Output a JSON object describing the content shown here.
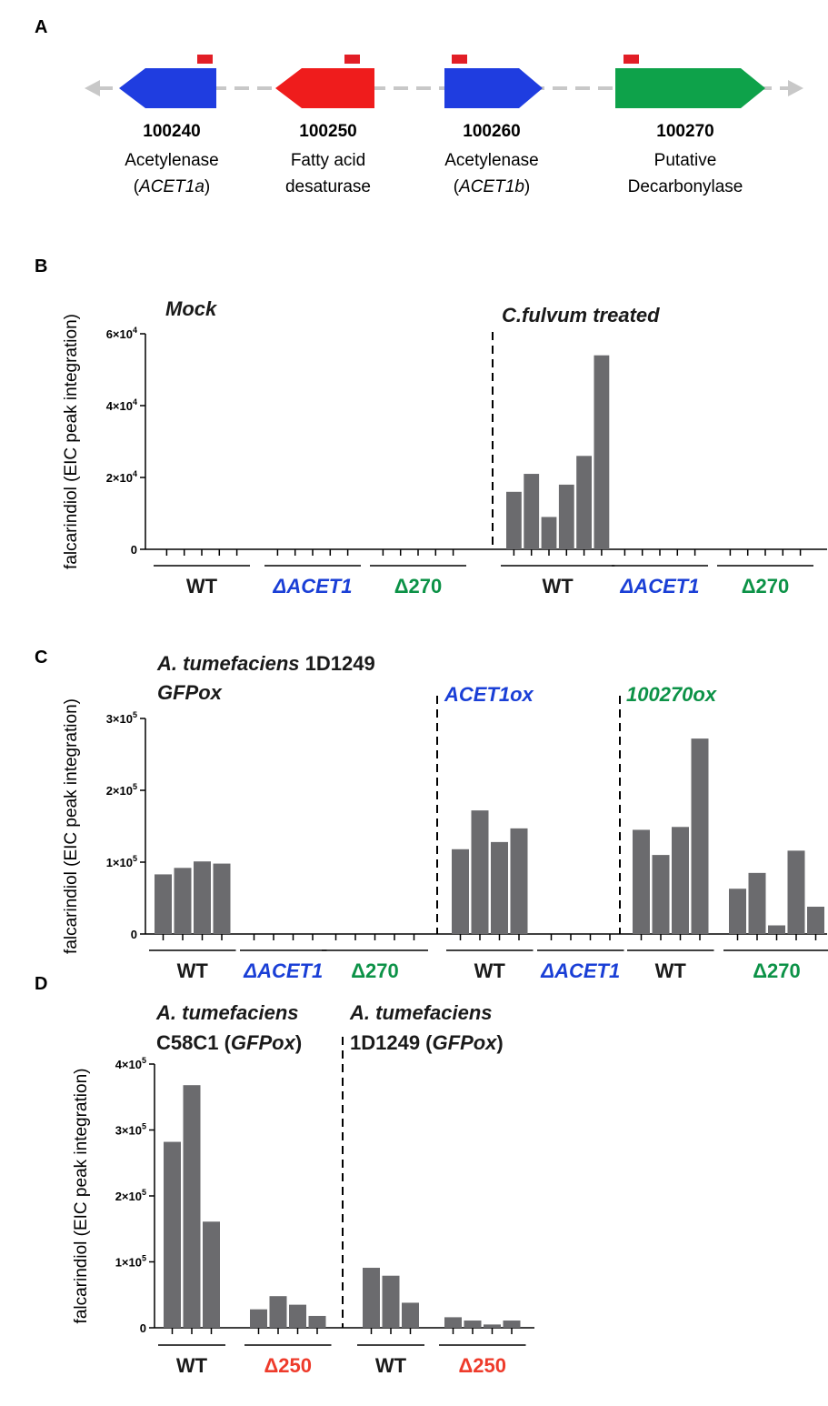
{
  "panel_labels": [
    "A",
    "B",
    "C",
    "D"
  ],
  "colors": {
    "bar": "#6b6b6e",
    "acetylenase": "#1f3de0",
    "desaturase": "#ef1c1c",
    "decarbonylase": "#0ea24a",
    "probe": "#e21e26",
    "backbone": "#c8c8c8",
    "axis": "#000000",
    "label_dark": "#1a1a1a",
    "label_blue": "#1a3fd6",
    "label_green": "#0c9247",
    "label_red": "#ee3b2b"
  },
  "genes": [
    {
      "id": "100240",
      "line1": "Acetylenase",
      "line2_pre": "(",
      "line2_italic": "ACET1a",
      "line2_post": ")",
      "direction": "left",
      "color_key": "acetylenase"
    },
    {
      "id": "100250",
      "line1": "Fatty acid",
      "line2_pre": "desaturase",
      "line2_italic": "",
      "line2_post": "",
      "direction": "left",
      "color_key": "desaturase"
    },
    {
      "id": "100260",
      "line1": "Acetylenase",
      "line2_pre": "(",
      "line2_italic": "ACET1b",
      "line2_post": ")",
      "direction": "right",
      "color_key": "acetylenase"
    },
    {
      "id": "100270",
      "line1": "Putative",
      "line2_pre": "Decarbonylase",
      "line2_italic": "",
      "line2_post": "",
      "direction": "right",
      "color_key": "decarbonylase"
    }
  ],
  "chart_data": [
    {
      "panel": "B",
      "type": "bar",
      "ylabel": "falcarindiol (EIC peak integration)",
      "ylim": [
        0,
        60000
      ],
      "y_ticks": [
        {
          "value": 0,
          "mant": "0",
          "exp": ""
        },
        {
          "value": 20000,
          "mant": "2×10",
          "exp": "4"
        },
        {
          "value": 40000,
          "mant": "4×10",
          "exp": "4"
        },
        {
          "value": 60000,
          "mant": "6×10",
          "exp": "4"
        }
      ],
      "headers": [
        {
          "lines": [
            {
              "parts": [
                {
                  "text": "Mock",
                  "italic": true
                }
              ]
            }
          ],
          "color_key": "label_dark"
        },
        {
          "lines": [
            {
              "parts": [
                {
                  "text": "C.fulvum treated",
                  "italic": true
                }
              ]
            }
          ],
          "color_key": "label_dark"
        }
      ],
      "groups": [
        {
          "label": "WT",
          "italic": false,
          "color_key": "label_dark",
          "values": [
            0,
            0,
            0,
            0,
            0
          ]
        },
        {
          "label": "ΔACET1",
          "italic": true,
          "color_key": "label_blue",
          "values": [
            0,
            0,
            0,
            0,
            0
          ]
        },
        {
          "label": "Δ270",
          "italic": false,
          "color_key": "label_green",
          "values": [
            0,
            0,
            0,
            0,
            0
          ]
        },
        {
          "label": "WT",
          "italic": false,
          "color_key": "label_dark",
          "values": [
            16000,
            21000,
            9000,
            18000,
            26000,
            54000
          ]
        },
        {
          "label": "ΔACET1",
          "italic": true,
          "color_key": "label_blue",
          "values": [
            0,
            0,
            0,
            0,
            0
          ]
        },
        {
          "label": "Δ270",
          "italic": false,
          "color_key": "label_green",
          "values": [
            0,
            0,
            0,
            0,
            0
          ]
        }
      ]
    },
    {
      "panel": "C",
      "type": "bar",
      "ylabel": "falcarindiol (EIC peak integration)",
      "ylim": [
        0,
        300000
      ],
      "y_ticks": [
        {
          "value": 0,
          "mant": "0",
          "exp": ""
        },
        {
          "value": 100000,
          "mant": "1×10",
          "exp": "5"
        },
        {
          "value": 200000,
          "mant": "2×10",
          "exp": "5"
        },
        {
          "value": 300000,
          "mant": "3×10",
          "exp": "5"
        }
      ],
      "headers": [
        {
          "lines": [
            {
              "parts": [
                {
                  "text": "A. tumefaciens",
                  "italic": true
                },
                {
                  "text": " 1D1249",
                  "italic": false
                }
              ]
            },
            {
              "parts": [
                {
                  "text": "GFPox",
                  "italic": true
                }
              ]
            }
          ],
          "color_key": "label_dark"
        },
        {
          "lines": [
            {
              "parts": [
                {
                  "text": "ACET1ox",
                  "italic": true
                }
              ]
            }
          ],
          "color_key": "label_blue"
        },
        {
          "lines": [
            {
              "parts": [
                {
                  "text": "100270ox",
                  "italic": true
                }
              ]
            }
          ],
          "color_key": "label_green"
        }
      ],
      "groups": [
        {
          "label": "WT",
          "italic": false,
          "color_key": "label_dark",
          "values": [
            83000,
            92000,
            101000,
            98000
          ]
        },
        {
          "label": "ΔACET1",
          "italic": true,
          "color_key": "label_blue",
          "values": [
            0,
            0,
            0,
            0
          ]
        },
        {
          "label": "Δ270",
          "italic": false,
          "color_key": "label_green",
          "values": [
            0,
            0,
            0,
            0,
            0
          ]
        },
        {
          "label": "WT",
          "italic": false,
          "color_key": "label_dark",
          "values": [
            118000,
            172000,
            128000,
            147000
          ]
        },
        {
          "label": "ΔACET1",
          "italic": true,
          "color_key": "label_blue",
          "values": [
            0,
            0,
            0,
            0
          ]
        },
        {
          "label": "WT",
          "italic": false,
          "color_key": "label_dark",
          "values": [
            145000,
            110000,
            149000,
            272000
          ]
        },
        {
          "label": "Δ270",
          "italic": false,
          "color_key": "label_green",
          "values": [
            63000,
            85000,
            12000,
            116000,
            38000
          ]
        }
      ]
    },
    {
      "panel": "D",
      "type": "bar",
      "ylabel": "falcarindiol (EIC peak integration)",
      "ylim": [
        0,
        400000
      ],
      "y_ticks": [
        {
          "value": 0,
          "mant": "0",
          "exp": ""
        },
        {
          "value": 100000,
          "mant": "1×10",
          "exp": "5"
        },
        {
          "value": 200000,
          "mant": "2×10",
          "exp": "5"
        },
        {
          "value": 300000,
          "mant": "3×10",
          "exp": "5"
        },
        {
          "value": 400000,
          "mant": "4×10",
          "exp": "5"
        }
      ],
      "headers": [
        {
          "lines": [
            {
              "parts": [
                {
                  "text": "A. tumefaciens",
                  "italic": true
                }
              ]
            },
            {
              "parts": [
                {
                  "text": "C58C1 (",
                  "italic": false
                },
                {
                  "text": "GFPox",
                  "italic": true
                },
                {
                  "text": ")",
                  "italic": false
                }
              ]
            }
          ],
          "color_key": "label_dark"
        },
        {
          "lines": [
            {
              "parts": [
                {
                  "text": "A. tumefaciens",
                  "italic": true
                }
              ]
            },
            {
              "parts": [
                {
                  "text": "1D1249 (",
                  "italic": false
                },
                {
                  "text": "GFPox",
                  "italic": true
                },
                {
                  "text": ")",
                  "italic": false
                }
              ]
            }
          ],
          "color_key": "label_dark"
        }
      ],
      "groups": [
        {
          "label": "WT",
          "italic": false,
          "color_key": "label_dark",
          "values": [
            282000,
            368000,
            161000
          ]
        },
        {
          "label": "Δ250",
          "italic": false,
          "color_key": "label_red",
          "values": [
            28000,
            48000,
            35000,
            18000
          ]
        },
        {
          "label": "WT",
          "italic": false,
          "color_key": "label_dark",
          "values": [
            91000,
            79000,
            38000
          ]
        },
        {
          "label": "Δ250",
          "italic": false,
          "color_key": "label_red",
          "values": [
            16000,
            11000,
            5000,
            11000
          ]
        }
      ]
    }
  ]
}
